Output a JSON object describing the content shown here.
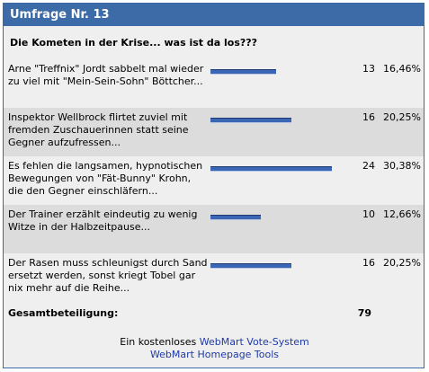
{
  "poll": {
    "title": "Umfrage Nr. 13",
    "question": "Die Kometen in der Krise... was ist da los???",
    "options": [
      {
        "label": "Arne \"Treffnix\" Jordt sabbelt mal wieder zu viel mit \"Mein-Sein-Sohn\" Böttcher...",
        "count": "13",
        "percent": "16,46%",
        "share": 0.5417
      },
      {
        "label": "Inspektor Wellbrock flirtet zuviel mit fremden Zuschauerinnen statt seine Gegner aufzufressen...",
        "count": "16",
        "percent": "20,25%",
        "share": 0.6667
      },
      {
        "label": "Es fehlen die langsamen, hypnotischen Bewegungen von \"Fät-Bunny\" Krohn, die den Gegner einschläfern...",
        "count": "24",
        "percent": "30,38%",
        "share": 1.0
      },
      {
        "label": "Der Trainer erzählt eindeutig zu wenig Witze in der Halbzeitpause...",
        "count": "10",
        "percent": "12,66%",
        "share": 0.4167
      },
      {
        "label": "Der Rasen muss schleunigst durch Sand ersetzt werden, sonst kriegt Tobel gar nix mehr auf die Reihe...",
        "count": "16",
        "percent": "20,25%",
        "share": 0.6667
      }
    ],
    "total_label": "Gesamtbeteiligung:",
    "total_count": "79"
  },
  "footer": {
    "prefix": "Ein kostenloses",
    "vote_link": "WebMart Vote-System",
    "tools_link": "WebMart Homepage Tools"
  },
  "colors": {
    "header_bg": "#3c6ba8",
    "bar": "#3a66b4",
    "alt_row": "#dcdcdc",
    "link": "#1f3aa8"
  }
}
